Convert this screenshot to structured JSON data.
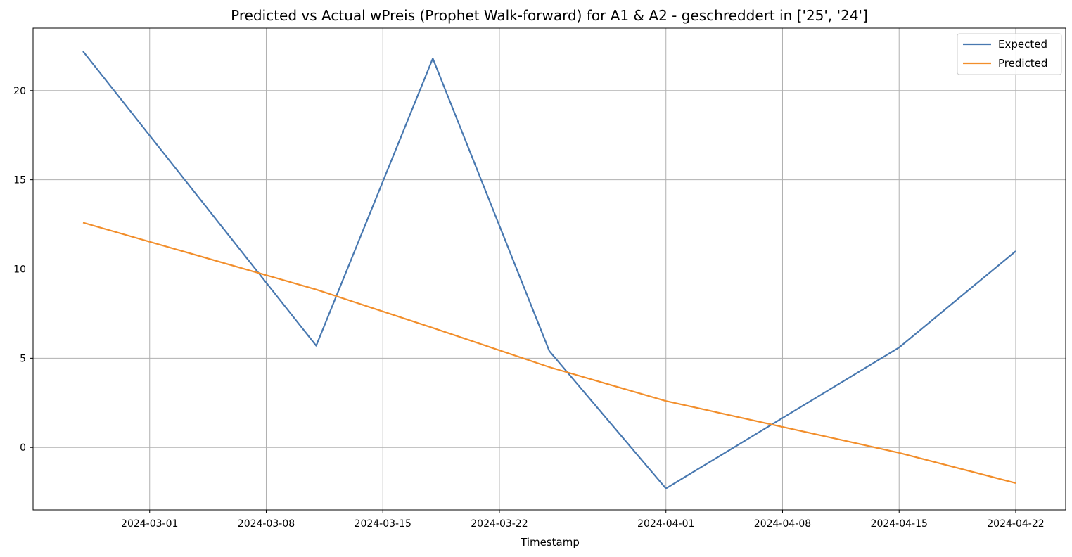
{
  "chart_data": {
    "type": "line",
    "title": "Predicted vs Actual wPreis (Prophet Walk-forward) for A1 & A2 -  geschreddert in ['25', '24']",
    "xlabel": "Timestamp",
    "ylabel": "",
    "x": [
      "2024-02-26",
      "2024-03-11",
      "2024-03-18",
      "2024-03-25",
      "2024-04-01",
      "2024-04-15",
      "2024-04-22"
    ],
    "xlim": [
      "2024-02-23",
      "2024-04-25"
    ],
    "ylim": [
      -3.5,
      23.5
    ],
    "x_ticks": [
      "2024-03-01",
      "2024-03-08",
      "2024-03-15",
      "2024-03-22",
      "2024-04-01",
      "2024-04-08",
      "2024-04-15",
      "2024-04-22"
    ],
    "y_ticks": [
      0,
      5,
      10,
      15,
      20
    ],
    "grid": true,
    "legend": "top-right",
    "series": [
      {
        "name": "Expected",
        "color": "#4878b0",
        "values": [
          22.2,
          5.7,
          21.8,
          5.4,
          -2.3,
          5.6,
          11.0
        ]
      },
      {
        "name": "Predicted",
        "color": "#f28e2b",
        "values": [
          12.6,
          8.85,
          6.7,
          4.5,
          2.6,
          -0.3,
          -2.0
        ]
      }
    ]
  }
}
